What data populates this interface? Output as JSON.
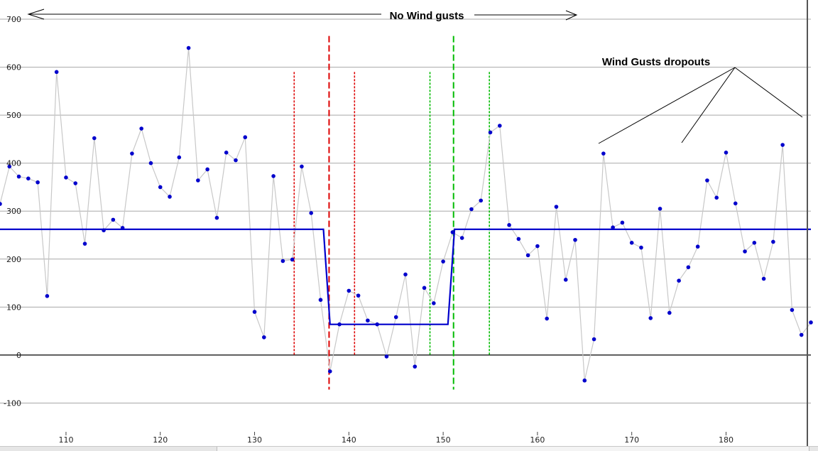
{
  "chart_data": {
    "type": "line",
    "title": "",
    "xlabel": "",
    "ylabel": "",
    "xlim": [
      103,
      189
    ],
    "ylim": [
      -160,
      740
    ],
    "x_ticks": [
      110,
      120,
      130,
      140,
      150,
      160,
      170,
      180
    ],
    "y_ticks": [
      -100,
      0,
      100,
      200,
      300,
      400,
      500,
      600,
      700
    ],
    "grid": true,
    "series": [
      {
        "style": "points-connected",
        "color": "#0000cc",
        "line_color": "#c8c8c8",
        "x": [
          103,
          104,
          105,
          106,
          107,
          108,
          109,
          110,
          111,
          112,
          113,
          114,
          115,
          116,
          117,
          118,
          119,
          120,
          121,
          122,
          123,
          124,
          125,
          126,
          127,
          128,
          129,
          130,
          131,
          132,
          133,
          134,
          135,
          136,
          137,
          138,
          139,
          140,
          141,
          142,
          143,
          144,
          145,
          146,
          147,
          148,
          149,
          150,
          151,
          152,
          153,
          154,
          155,
          156,
          157,
          158,
          159,
          160,
          161,
          162,
          163,
          164,
          165,
          166,
          167,
          168,
          169,
          170,
          171,
          172,
          173,
          174,
          175,
          176,
          177,
          178,
          179,
          180,
          181,
          182,
          183,
          184,
          185,
          186,
          187,
          188,
          189
        ],
        "y": [
          315,
          393,
          372,
          368,
          360,
          123,
          590,
          370,
          358,
          232,
          452,
          260,
          282,
          265,
          420,
          472,
          400,
          350,
          330,
          412,
          640,
          364,
          387,
          286,
          422,
          406,
          454,
          90,
          37,
          373,
          196,
          199,
          393,
          296,
          115,
          -34,
          64,
          134,
          124,
          72,
          64,
          -3,
          79,
          168,
          -24,
          140,
          108,
          195,
          256,
          244,
          304,
          322,
          464,
          478,
          271,
          242,
          208,
          227,
          76,
          309,
          157,
          240,
          -53,
          33,
          420,
          266,
          276,
          234,
          224,
          77,
          305,
          88,
          155,
          183,
          226,
          364,
          328,
          422,
          316,
          216,
          234,
          159,
          236,
          438,
          94,
          42,
          68
        ]
      },
      {
        "style": "step-line",
        "color": "#0000cc",
        "x": [
          103,
          137.3,
          138,
          150.5,
          151.2,
          189
        ],
        "y": [
          262,
          262,
          64,
          64,
          262,
          262
        ]
      }
    ],
    "markers": [
      {
        "x": 134.2,
        "y_from": -2,
        "y_to": 590,
        "color": "#dd0000",
        "style": "dotted"
      },
      {
        "x": 137.9,
        "y_from": -72,
        "y_to": 665,
        "color": "#dd0000",
        "style": "dashed"
      },
      {
        "x": 140.6,
        "y_from": -2,
        "y_to": 590,
        "color": "#dd0000",
        "style": "dotted"
      },
      {
        "x": 148.6,
        "y_from": -2,
        "y_to": 590,
        "color": "#00bb00",
        "style": "dotted"
      },
      {
        "x": 151.1,
        "y_from": -72,
        "y_to": 665,
        "color": "#00bb00",
        "style": "dashed"
      },
      {
        "x": 154.9,
        "y_from": -2,
        "y_to": 590,
        "color": "#00bb00",
        "style": "dotted"
      }
    ],
    "annotations": [
      {
        "text": "No Wind gusts",
        "arrow": "double-horizontal"
      },
      {
        "text": "Wind Gusts dropouts",
        "arrow": "three-lines"
      }
    ]
  }
}
